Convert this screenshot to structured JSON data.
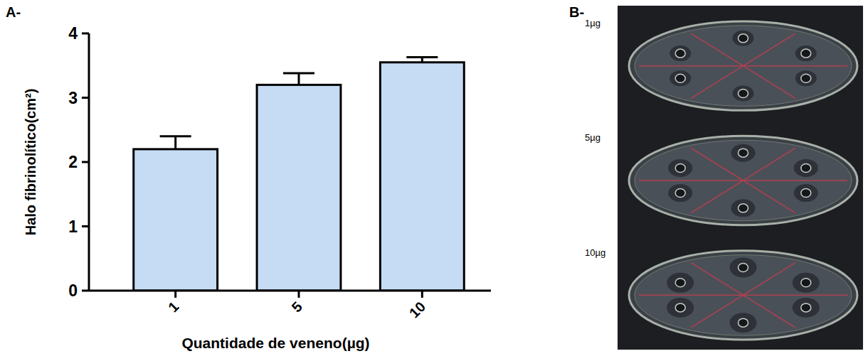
{
  "panel_labels": [
    "A-",
    "B-"
  ],
  "chart_data": {
    "type": "bar",
    "x_label": "Quantidade de veneno(µg)",
    "y_label": "Halo fibrinolítico(cm²)",
    "categories": [
      "1",
      "5",
      "10"
    ],
    "values": [
      2.2,
      3.2,
      3.55
    ],
    "errors": [
      0.2,
      0.18,
      0.08
    ],
    "color": "#c6dcf5",
    "ylim": [
      0,
      4
    ],
    "yticks": [
      0,
      1,
      2,
      3,
      4
    ],
    "grid": false
  },
  "photo": {
    "plate_labels": [
      "1µg",
      "5µg",
      "10µg"
    ]
  }
}
